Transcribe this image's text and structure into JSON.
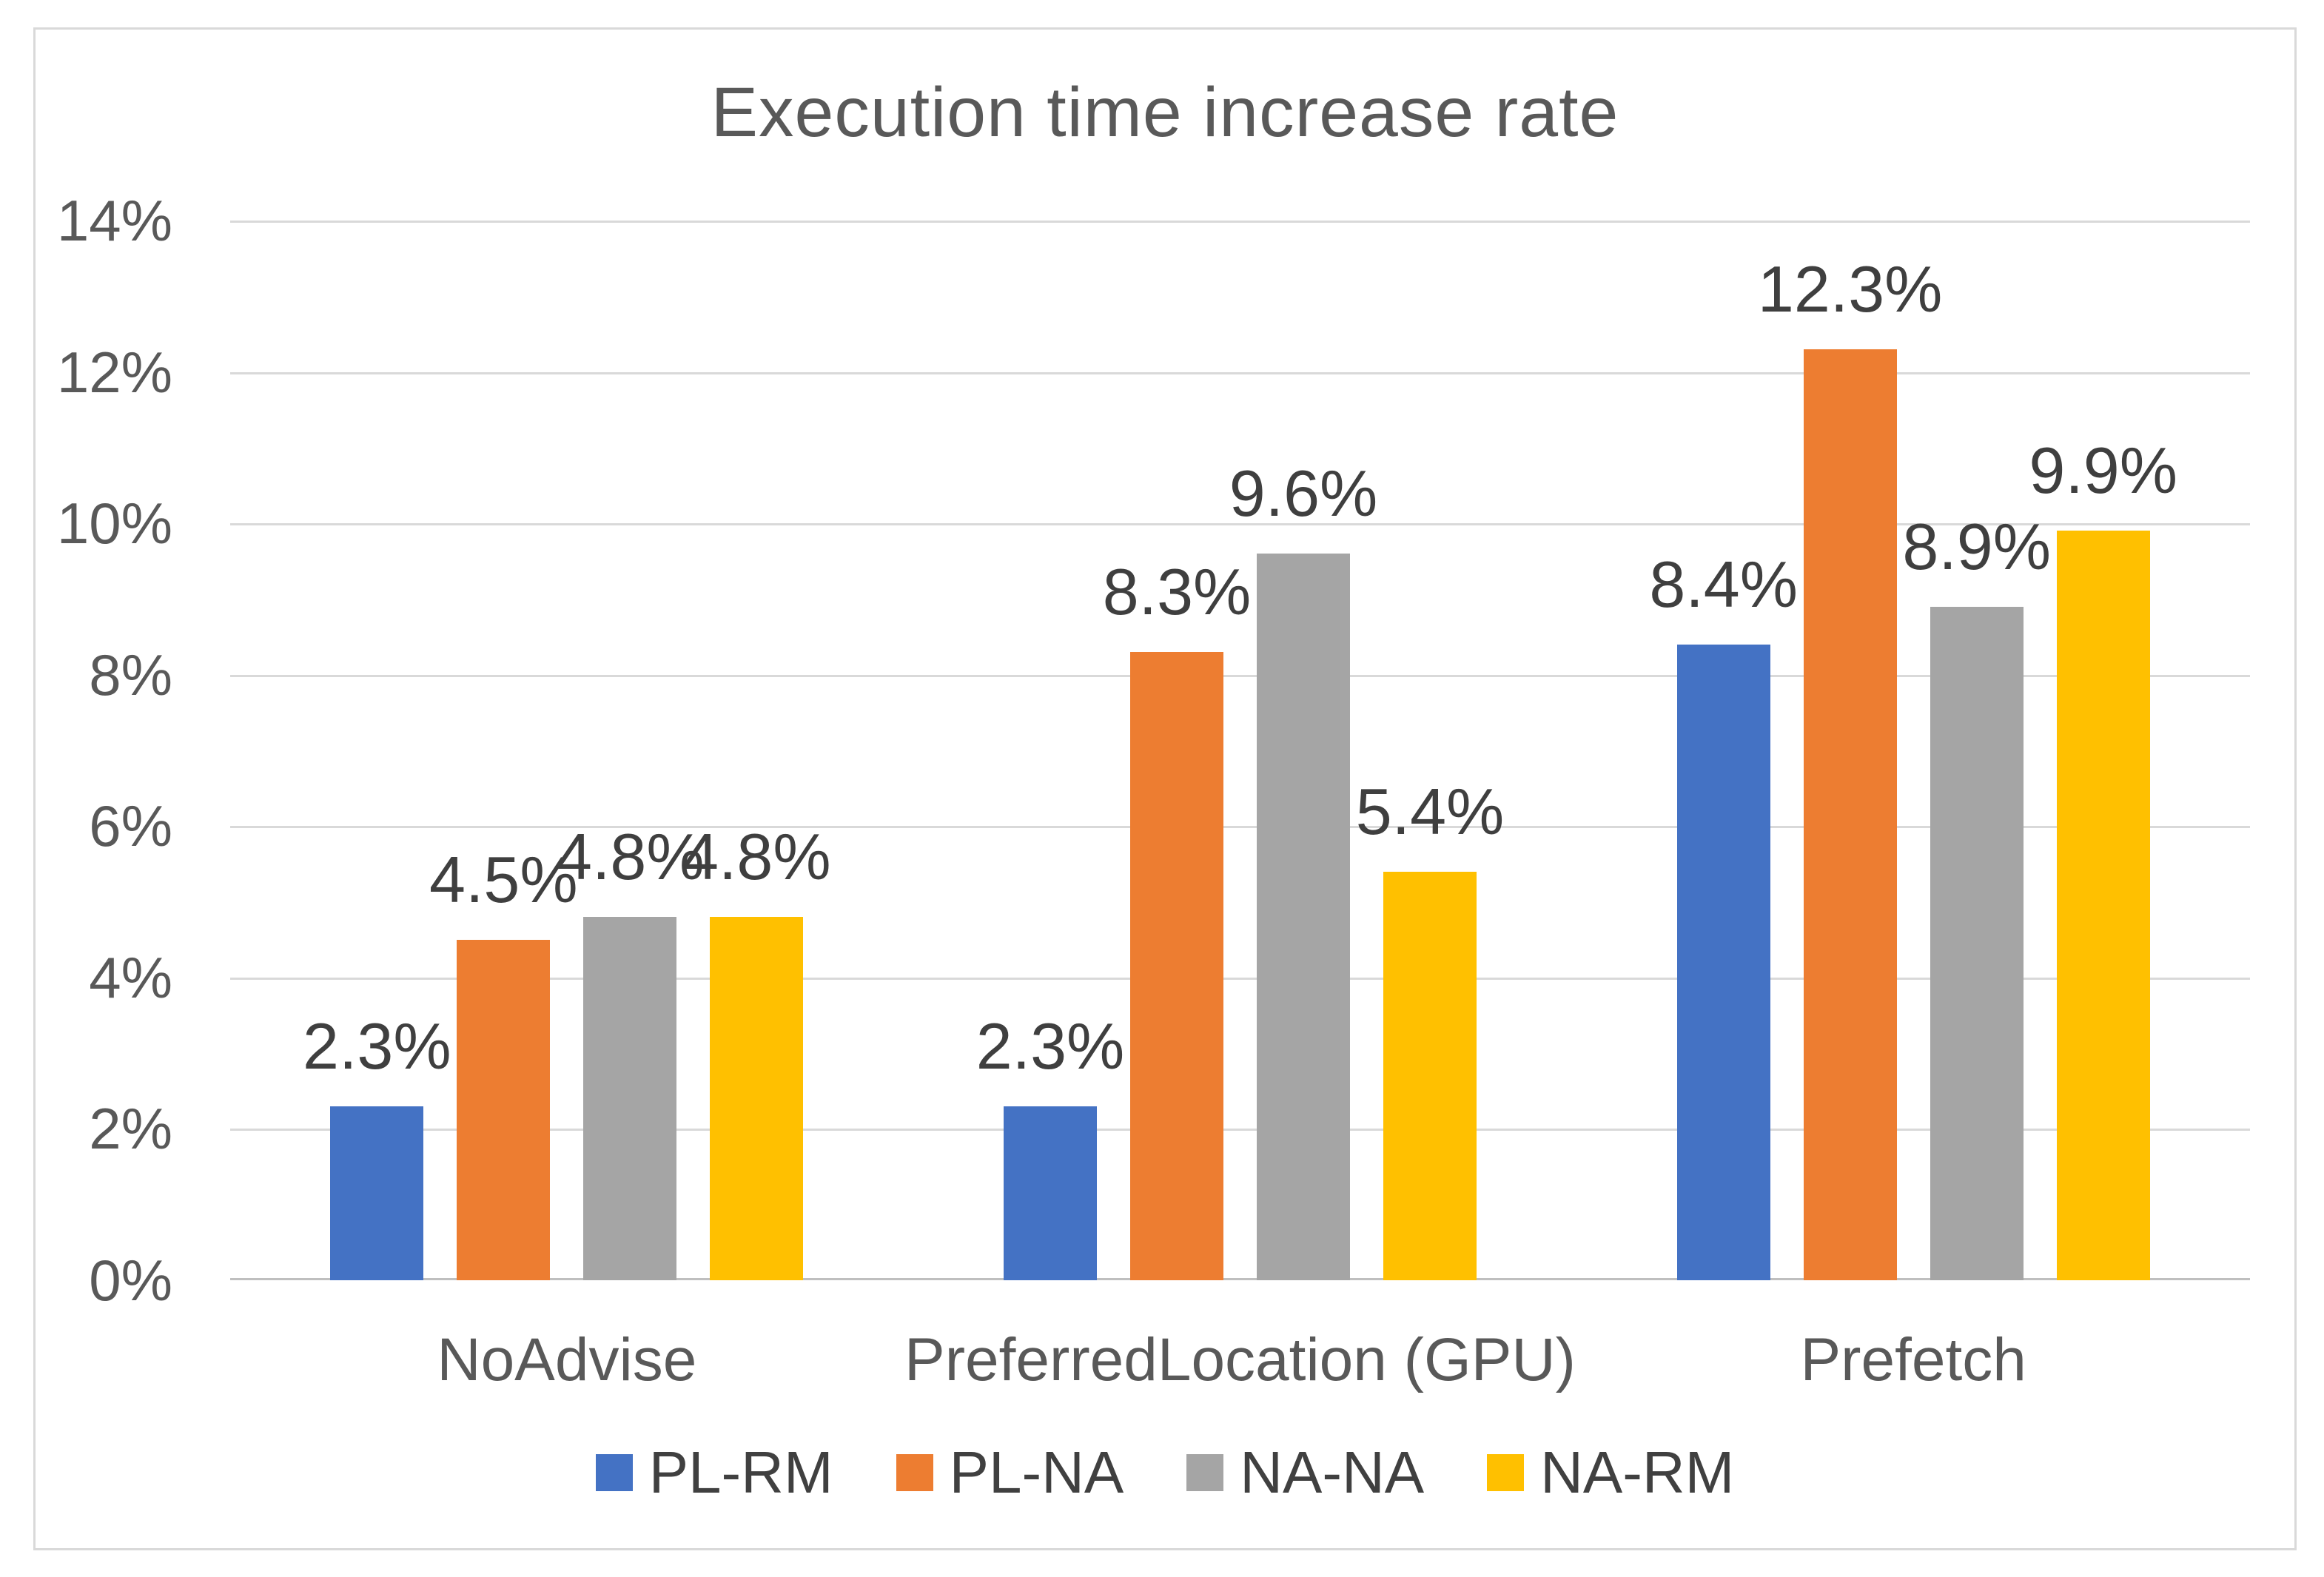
{
  "chart_data": {
    "type": "bar",
    "title": "Execution time increase rate",
    "categories": [
      "NoAdvise",
      "PreferredLocation (GPU)",
      "Prefetch"
    ],
    "series": [
      {
        "name": "PL-RM",
        "color": "#4472C4",
        "values": [
          2.3,
          2.3,
          8.4
        ]
      },
      {
        "name": "PL-NA",
        "color": "#ED7D31",
        "values": [
          4.5,
          8.3,
          12.3
        ]
      },
      {
        "name": "NA-NA",
        "color": "#A5A5A5",
        "values": [
          4.8,
          9.6,
          8.9
        ]
      },
      {
        "name": "NA-RM",
        "color": "#FFC000",
        "values": [
          4.8,
          5.4,
          9.9
        ]
      }
    ],
    "data_labels": [
      [
        "2.3%",
        "4.5%",
        "4.8%",
        "4.8%"
      ],
      [
        "2.3%",
        "8.3%",
        "9.6%",
        "5.4%"
      ],
      [
        "8.4%",
        "12.3%",
        "8.9%",
        "9.9%"
      ]
    ],
    "y_ticks": [
      "0%",
      "2%",
      "4%",
      "6%",
      "8%",
      "10%",
      "12%",
      "14%"
    ],
    "ylim": [
      0,
      14
    ],
    "grid": true,
    "legend_position": "bottom",
    "colors": {
      "gridline": "#D9D9D9",
      "axis_line": "#BFBFBF",
      "frame_border": "#D9D9D9",
      "title_text": "#595959",
      "tick_text": "#595959",
      "data_label_text": "#3F3F3F",
      "legend_text": "#404040"
    }
  }
}
